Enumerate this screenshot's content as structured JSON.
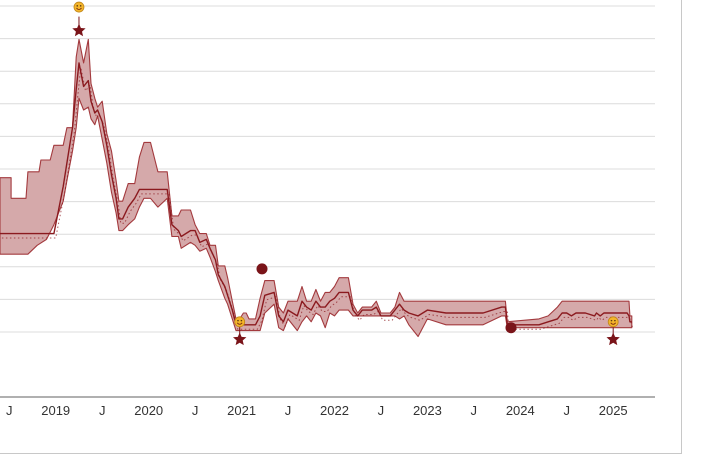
{
  "colors": {
    "band_fill": "#d5a9aa",
    "band_stroke": "#a33a3e",
    "line": "#8b1a1f",
    "grid": "#dcdcdc",
    "axis": "#808080",
    "marker": "#7a1419",
    "emoji": "#f4b52a"
  },
  "chart_data": {
    "type": "area",
    "title": "",
    "xlabel": "",
    "ylabel": "",
    "grid": true,
    "legend": "none",
    "xlim": [
      2018.4,
      2025.45
    ],
    "ylim": [
      0,
      12
    ],
    "x_ticks": [
      {
        "label": "J",
        "x": 2018.5
      },
      {
        "label": "2019",
        "x": 2019.0
      },
      {
        "label": "J",
        "x": 2019.5
      },
      {
        "label": "2020",
        "x": 2020.0
      },
      {
        "label": "J",
        "x": 2020.5
      },
      {
        "label": "2021",
        "x": 2021.0
      },
      {
        "label": "J",
        "x": 2021.5
      },
      {
        "label": "2022",
        "x": 2022.0
      },
      {
        "label": "J",
        "x": 2022.5
      },
      {
        "label": "2023",
        "x": 2023.0
      },
      {
        "label": "J",
        "x": 2023.5
      },
      {
        "label": "2024",
        "x": 2024.0
      },
      {
        "label": "J",
        "x": 2024.5
      },
      {
        "label": "2025",
        "x": 2025.0
      }
    ],
    "band_upper": [
      [
        2018.4,
        6.3
      ],
      [
        2018.52,
        6.3
      ],
      [
        2018.52,
        5.6
      ],
      [
        2018.68,
        5.6
      ],
      [
        2018.7,
        6.5
      ],
      [
        2018.82,
        6.5
      ],
      [
        2018.84,
        6.9
      ],
      [
        2018.94,
        6.9
      ],
      [
        2018.98,
        7.4
      ],
      [
        2019.08,
        7.4
      ],
      [
        2019.12,
        8.0
      ],
      [
        2019.18,
        8.0
      ],
      [
        2019.22,
        10.4
      ],
      [
        2019.25,
        11.0
      ],
      [
        2019.3,
        10.2
      ],
      [
        2019.35,
        11.0
      ],
      [
        2019.38,
        9.5
      ],
      [
        2019.42,
        9.0
      ],
      [
        2019.45,
        8.7
      ],
      [
        2019.5,
        8.9
      ],
      [
        2019.55,
        7.8
      ],
      [
        2019.6,
        7.2
      ],
      [
        2019.65,
        6.2
      ],
      [
        2019.68,
        5.5
      ],
      [
        2019.72,
        5.5
      ],
      [
        2019.78,
        6.1
      ],
      [
        2019.85,
        6.1
      ],
      [
        2019.9,
        7.0
      ],
      [
        2019.95,
        7.5
      ],
      [
        2020.02,
        7.5
      ],
      [
        2020.1,
        6.5
      ],
      [
        2020.2,
        6.5
      ],
      [
        2020.25,
        5.0
      ],
      [
        2020.32,
        5.0
      ],
      [
        2020.35,
        5.2
      ],
      [
        2020.45,
        5.2
      ],
      [
        2020.5,
        4.7
      ],
      [
        2020.55,
        4.4
      ],
      [
        2020.62,
        4.4
      ],
      [
        2020.66,
        4.0
      ],
      [
        2020.72,
        4.0
      ],
      [
        2020.75,
        3.3
      ],
      [
        2020.82,
        3.3
      ],
      [
        2020.85,
        2.9
      ],
      [
        2020.9,
        2.1
      ],
      [
        2020.94,
        1.5
      ],
      [
        2020.98,
        1.5
      ],
      [
        2021.02,
        1.7
      ],
      [
        2021.05,
        1.7
      ],
      [
        2021.08,
        1.5
      ],
      [
        2021.15,
        1.5
      ],
      [
        2021.2,
        2.2
      ],
      [
        2021.25,
        2.8
      ],
      [
        2021.35,
        2.8
      ],
      [
        2021.4,
        1.9
      ],
      [
        2021.45,
        1.7
      ],
      [
        2021.5,
        2.1
      ],
      [
        2021.6,
        2.1
      ],
      [
        2021.65,
        2.6
      ],
      [
        2021.7,
        2.1
      ],
      [
        2021.75,
        2.1
      ],
      [
        2021.8,
        2.5
      ],
      [
        2021.85,
        2.1
      ],
      [
        2021.9,
        2.4
      ],
      [
        2021.95,
        2.4
      ],
      [
        2022.0,
        2.6
      ],
      [
        2022.05,
        2.9
      ],
      [
        2022.15,
        2.9
      ],
      [
        2022.2,
        2.0
      ],
      [
        2022.25,
        1.7
      ],
      [
        2022.3,
        1.9
      ],
      [
        2022.4,
        1.9
      ],
      [
        2022.45,
        2.1
      ],
      [
        2022.5,
        1.7
      ],
      [
        2022.6,
        1.7
      ],
      [
        2022.65,
        1.9
      ],
      [
        2022.7,
        2.4
      ],
      [
        2022.75,
        2.1
      ],
      [
        2022.8,
        2.1
      ],
      [
        2022.9,
        2.1
      ],
      [
        2023.0,
        2.1
      ],
      [
        2023.2,
        2.1
      ],
      [
        2023.4,
        2.1
      ],
      [
        2023.6,
        2.1
      ],
      [
        2023.8,
        2.1
      ],
      [
        2023.84,
        2.1
      ],
      [
        2023.86,
        1.4
      ],
      [
        2024.2,
        1.5
      ],
      [
        2024.3,
        1.6
      ],
      [
        2024.4,
        1.9
      ],
      [
        2024.45,
        2.1
      ],
      [
        2024.5,
        2.1
      ],
      [
        2024.55,
        2.1
      ],
      [
        2024.6,
        2.1
      ],
      [
        2024.7,
        2.1
      ],
      [
        2024.8,
        2.1
      ],
      [
        2024.82,
        2.1
      ],
      [
        2024.86,
        2.1
      ],
      [
        2024.9,
        2.1
      ],
      [
        2025.0,
        2.1
      ],
      [
        2025.15,
        2.1
      ],
      [
        2025.17,
        2.1
      ],
      [
        2025.18,
        1.6
      ],
      [
        2025.2,
        1.6
      ]
    ],
    "band_lower": [
      [
        2018.4,
        3.7
      ],
      [
        2018.6,
        3.7
      ],
      [
        2018.7,
        3.7
      ],
      [
        2018.8,
        4.0
      ],
      [
        2018.9,
        4.2
      ],
      [
        2018.98,
        4.7
      ],
      [
        2019.08,
        5.5
      ],
      [
        2019.12,
        6.2
      ],
      [
        2019.18,
        7.2
      ],
      [
        2019.22,
        8.0
      ],
      [
        2019.25,
        9.0
      ],
      [
        2019.3,
        8.6
      ],
      [
        2019.35,
        8.7
      ],
      [
        2019.38,
        8.3
      ],
      [
        2019.42,
        8.1
      ],
      [
        2019.45,
        8.4
      ],
      [
        2019.5,
        7.6
      ],
      [
        2019.55,
        6.8
      ],
      [
        2019.6,
        5.8
      ],
      [
        2019.65,
        5.1
      ],
      [
        2019.68,
        4.5
      ],
      [
        2019.72,
        4.5
      ],
      [
        2019.78,
        4.7
      ],
      [
        2019.85,
        4.9
      ],
      [
        2019.9,
        5.3
      ],
      [
        2019.95,
        5.6
      ],
      [
        2020.02,
        5.6
      ],
      [
        2020.1,
        5.3
      ],
      [
        2020.2,
        5.6
      ],
      [
        2020.25,
        4.3
      ],
      [
        2020.32,
        4.3
      ],
      [
        2020.35,
        3.9
      ],
      [
        2020.45,
        4.1
      ],
      [
        2020.5,
        4.0
      ],
      [
        2020.55,
        3.8
      ],
      [
        2020.62,
        3.9
      ],
      [
        2020.66,
        3.6
      ],
      [
        2020.72,
        3.1
      ],
      [
        2020.75,
        2.8
      ],
      [
        2020.82,
        2.2
      ],
      [
        2020.85,
        2.0
      ],
      [
        2020.9,
        1.5
      ],
      [
        2020.94,
        1.1
      ],
      [
        2020.98,
        1.1
      ],
      [
        2021.02,
        1.1
      ],
      [
        2021.05,
        1.1
      ],
      [
        2021.08,
        1.1
      ],
      [
        2021.15,
        1.1
      ],
      [
        2021.2,
        1.1
      ],
      [
        2021.25,
        1.7
      ],
      [
        2021.35,
        2.0
      ],
      [
        2021.4,
        1.2
      ],
      [
        2021.45,
        1.1
      ],
      [
        2021.5,
        1.5
      ],
      [
        2021.6,
        1.1
      ],
      [
        2021.65,
        1.4
      ],
      [
        2021.7,
        1.6
      ],
      [
        2021.75,
        1.4
      ],
      [
        2021.8,
        1.7
      ],
      [
        2021.85,
        1.6
      ],
      [
        2021.9,
        1.2
      ],
      [
        2021.95,
        1.7
      ],
      [
        2022.0,
        1.6
      ],
      [
        2022.05,
        1.8
      ],
      [
        2022.15,
        1.8
      ],
      [
        2022.2,
        1.6
      ],
      [
        2022.25,
        1.6
      ],
      [
        2022.3,
        1.6
      ],
      [
        2022.4,
        1.6
      ],
      [
        2022.45,
        1.6
      ],
      [
        2022.5,
        1.6
      ],
      [
        2022.6,
        1.6
      ],
      [
        2022.65,
        1.6
      ],
      [
        2022.7,
        1.5
      ],
      [
        2022.75,
        1.6
      ],
      [
        2022.8,
        1.3
      ],
      [
        2022.9,
        0.9
      ],
      [
        2023.0,
        1.5
      ],
      [
        2023.2,
        1.3
      ],
      [
        2023.4,
        1.3
      ],
      [
        2023.6,
        1.3
      ],
      [
        2023.8,
        1.6
      ],
      [
        2023.84,
        1.6
      ],
      [
        2023.86,
        1.2
      ],
      [
        2024.2,
        1.2
      ],
      [
        2024.3,
        1.2
      ],
      [
        2024.4,
        1.2
      ],
      [
        2024.45,
        1.2
      ],
      [
        2024.5,
        1.2
      ],
      [
        2024.55,
        1.2
      ],
      [
        2024.6,
        1.2
      ],
      [
        2024.7,
        1.2
      ],
      [
        2024.8,
        1.2
      ],
      [
        2024.82,
        1.2
      ],
      [
        2024.86,
        1.2
      ],
      [
        2024.9,
        1.2
      ],
      [
        2025.0,
        1.2
      ],
      [
        2025.15,
        1.2
      ],
      [
        2025.17,
        1.2
      ],
      [
        2025.18,
        1.2
      ],
      [
        2025.2,
        1.2
      ]
    ],
    "series": [
      {
        "points": [
          [
            2018.4,
            4.4
          ],
          [
            2018.7,
            4.4
          ],
          [
            2018.98,
            4.4
          ],
          [
            2019.08,
            6.0
          ],
          [
            2019.12,
            6.8
          ],
          [
            2019.18,
            8.0
          ],
          [
            2019.22,
            9.3
          ],
          [
            2019.25,
            10.2
          ],
          [
            2019.3,
            9.4
          ],
          [
            2019.35,
            9.6
          ],
          [
            2019.38,
            8.9
          ],
          [
            2019.42,
            8.5
          ],
          [
            2019.45,
            8.6
          ],
          [
            2019.5,
            8.2
          ],
          [
            2019.55,
            7.4
          ],
          [
            2019.6,
            6.4
          ],
          [
            2019.65,
            5.6
          ],
          [
            2019.68,
            4.9
          ],
          [
            2019.72,
            4.9
          ],
          [
            2019.78,
            5.3
          ],
          [
            2019.85,
            5.6
          ],
          [
            2019.9,
            5.9
          ],
          [
            2019.95,
            5.9
          ],
          [
            2020.02,
            5.9
          ],
          [
            2020.1,
            5.9
          ],
          [
            2020.2,
            5.9
          ],
          [
            2020.25,
            4.7
          ],
          [
            2020.32,
            4.5
          ],
          [
            2020.35,
            4.3
          ],
          [
            2020.45,
            4.5
          ],
          [
            2020.5,
            4.5
          ],
          [
            2020.55,
            4.1
          ],
          [
            2020.62,
            4.2
          ],
          [
            2020.66,
            3.9
          ],
          [
            2020.72,
            3.5
          ],
          [
            2020.75,
            3.0
          ],
          [
            2020.82,
            2.6
          ],
          [
            2020.85,
            2.3
          ],
          [
            2020.9,
            1.8
          ],
          [
            2020.94,
            1.3
          ],
          [
            2020.98,
            1.3
          ],
          [
            2021.02,
            1.3
          ],
          [
            2021.05,
            1.3
          ],
          [
            2021.08,
            1.3
          ],
          [
            2021.15,
            1.3
          ],
          [
            2021.2,
            1.6
          ],
          [
            2021.25,
            2.3
          ],
          [
            2021.35,
            2.4
          ],
          [
            2021.4,
            1.6
          ],
          [
            2021.45,
            1.4
          ],
          [
            2021.5,
            1.8
          ],
          [
            2021.6,
            1.6
          ],
          [
            2021.65,
            2.1
          ],
          [
            2021.7,
            1.9
          ],
          [
            2021.75,
            1.8
          ],
          [
            2021.8,
            2.1
          ],
          [
            2021.85,
            1.9
          ],
          [
            2021.9,
            1.9
          ],
          [
            2021.95,
            2.1
          ],
          [
            2022.0,
            2.2
          ],
          [
            2022.05,
            2.4
          ],
          [
            2022.15,
            2.4
          ],
          [
            2022.2,
            1.8
          ],
          [
            2022.25,
            1.6
          ],
          [
            2022.3,
            1.8
          ],
          [
            2022.4,
            1.8
          ],
          [
            2022.45,
            1.9
          ],
          [
            2022.5,
            1.6
          ],
          [
            2022.6,
            1.6
          ],
          [
            2022.65,
            1.8
          ],
          [
            2022.7,
            2.0
          ],
          [
            2022.75,
            1.8
          ],
          [
            2022.8,
            1.7
          ],
          [
            2022.9,
            1.6
          ],
          [
            2023.0,
            1.8
          ],
          [
            2023.2,
            1.7
          ],
          [
            2023.4,
            1.7
          ],
          [
            2023.6,
            1.7
          ],
          [
            2023.8,
            1.9
          ],
          [
            2023.84,
            1.9
          ],
          [
            2023.86,
            1.3
          ],
          [
            2024.2,
            1.3
          ],
          [
            2024.3,
            1.4
          ],
          [
            2024.4,
            1.5
          ],
          [
            2024.45,
            1.7
          ],
          [
            2024.5,
            1.7
          ],
          [
            2024.55,
            1.6
          ],
          [
            2024.6,
            1.7
          ],
          [
            2024.7,
            1.7
          ],
          [
            2024.8,
            1.6
          ],
          [
            2024.82,
            1.7
          ],
          [
            2024.86,
            1.6
          ],
          [
            2024.9,
            1.7
          ],
          [
            2025.0,
            1.7
          ],
          [
            2025.15,
            1.7
          ],
          [
            2025.17,
            1.6
          ],
          [
            2025.18,
            1.4
          ],
          [
            2025.2,
            1.4
          ]
        ]
      }
    ],
    "highlight_points": [
      [
        2021.22,
        3.2
      ],
      [
        2023.9,
        1.2
      ]
    ],
    "star_markers": [
      [
        2019.25,
        11.3
      ],
      [
        2020.98,
        0.8
      ],
      [
        2025.0,
        0.8
      ]
    ],
    "emoji_markers": [
      [
        2019.25,
        12.1
      ],
      [
        2020.98,
        1.4
      ],
      [
        2025.0,
        1.4
      ]
    ]
  }
}
